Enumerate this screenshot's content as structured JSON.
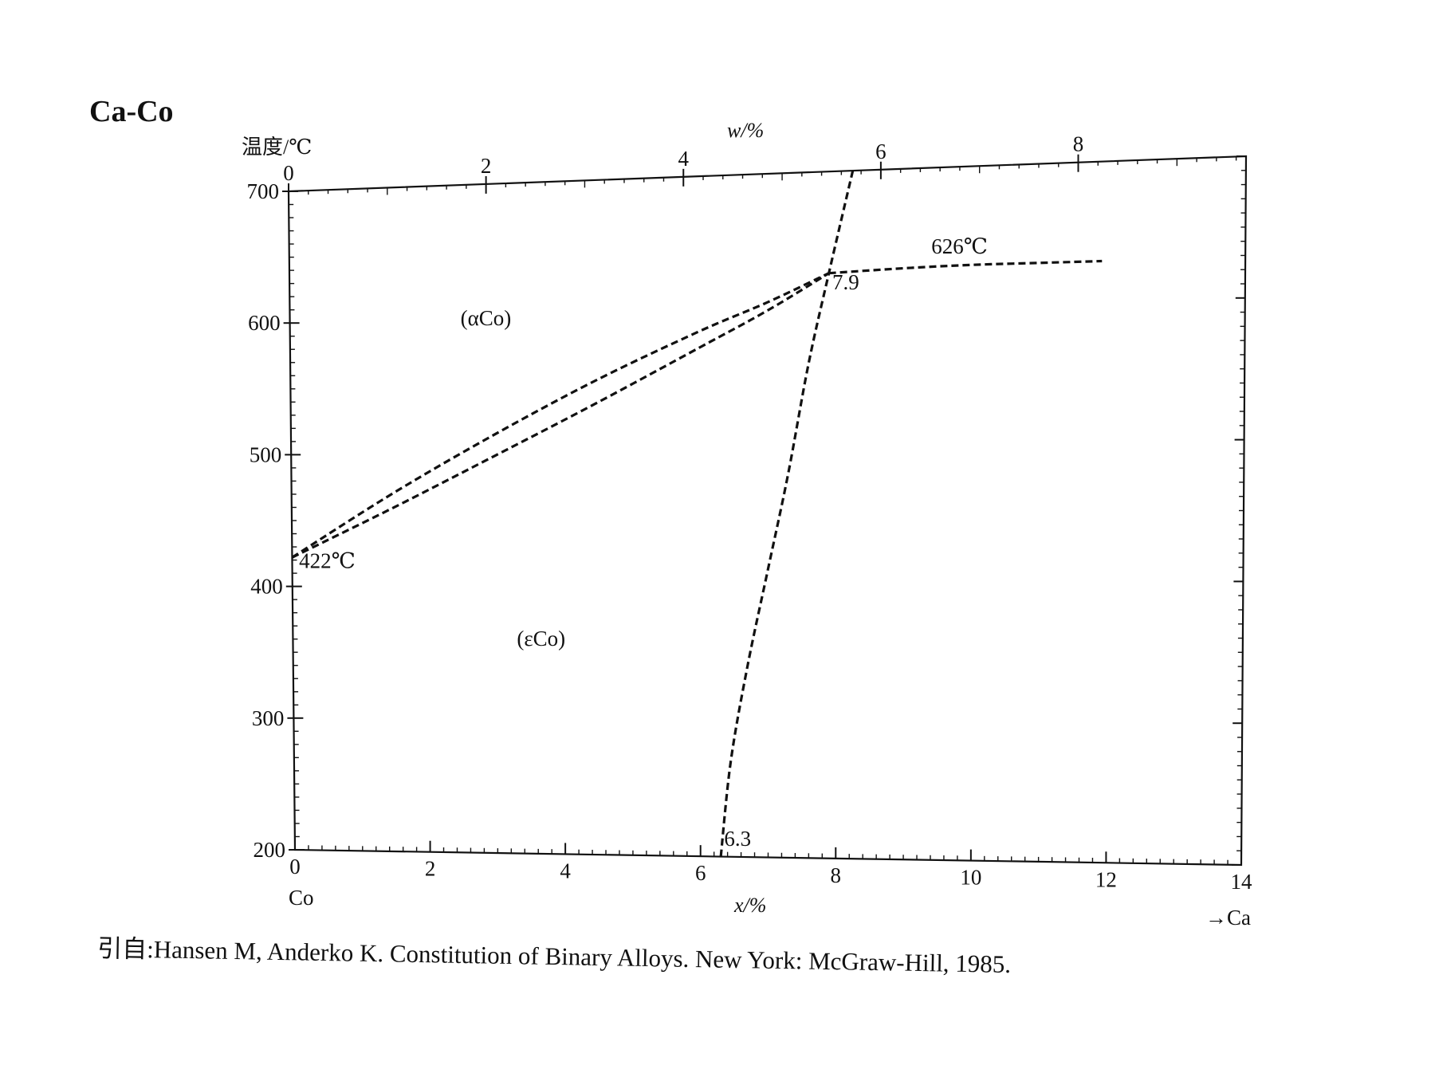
{
  "figure_title": "Ca-Co",
  "citation": "引自:Hansen M, Anderko K. Constitution of Binary Alloys. New York: McGraw-Hill, 1985.",
  "chart_data": {
    "type": "line",
    "title": "Ca-Co",
    "ylabel": "温度/℃",
    "xlabel": "x/%",
    "x2label": "w/%",
    "xlim": [
      0,
      14
    ],
    "ylim": [
      200,
      700
    ],
    "x2lim": [
      0,
      9.7
    ],
    "x_ticks": [
      0,
      2,
      4,
      6,
      8,
      10,
      12,
      14
    ],
    "x2_ticks": [
      0,
      2,
      4,
      6,
      8
    ],
    "y_ticks": [
      200,
      300,
      400,
      500,
      600,
      700
    ],
    "x_left_label": "Co",
    "x_right_label": "→Ca",
    "grid": false,
    "line_style": "dashed",
    "series": [
      {
        "values": [
          [
            0,
            422
          ],
          [
            1.5,
            470
          ],
          [
            3,
            513
          ],
          [
            4.5,
            552
          ],
          [
            6,
            586
          ],
          [
            7,
            606
          ],
          [
            7.9,
            626
          ]
        ]
      },
      {
        "values": [
          [
            0,
            422
          ],
          [
            1.5,
            459
          ],
          [
            3,
            497
          ],
          [
            4.5,
            535
          ],
          [
            6,
            574
          ],
          [
            7,
            600
          ],
          [
            7.9,
            626
          ]
        ]
      },
      {
        "values": [
          [
            7.9,
            626
          ],
          [
            9,
            628
          ],
          [
            10,
            629
          ],
          [
            11,
            629
          ],
          [
            11.9,
            629
          ]
        ]
      },
      {
        "values": [
          [
            6.3,
            200
          ],
          [
            6.45,
            270
          ],
          [
            6.7,
            340
          ],
          [
            7.0,
            410
          ],
          [
            7.3,
            480
          ],
          [
            7.6,
            560
          ],
          [
            7.9,
            626
          ],
          [
            8.25,
            700
          ]
        ]
      }
    ],
    "annotations": [
      {
        "text": "(αCo)",
        "x": 2.5,
        "y": 595
      },
      {
        "text": "(εCo)",
        "x": 3.3,
        "y": 355
      },
      {
        "text": "422℃",
        "x": 0.1,
        "y": 414
      },
      {
        "text": "626℃",
        "x": 9.4,
        "y": 638
      },
      {
        "text": "7.9",
        "x": 7.95,
        "y": 614
      },
      {
        "text": "6.3",
        "x": 6.35,
        "y": 208
      }
    ]
  }
}
